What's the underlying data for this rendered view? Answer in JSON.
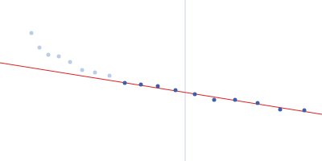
{
  "chart_data": {
    "type": "scatter",
    "xlim": [
      0,
      400
    ],
    "ylim": [
      0,
      200
    ],
    "tick_labels": false,
    "grid": false,
    "series": [
      {
        "type": "scatter",
        "color": "#b9cde8",
        "marker": "circle",
        "x": [
          39,
          49,
          60,
          73,
          87,
          102,
          118,
          136
        ],
        "values": [
          159,
          141,
          132,
          130,
          123,
          113,
          110,
          106
        ]
      },
      {
        "type": "scatter",
        "color": "#3d5ea8",
        "marker": "circle",
        "x": [
          155,
          175,
          196,
          218,
          242,
          266,
          292,
          320,
          348,
          378
        ],
        "values": [
          97,
          95,
          93,
          88,
          83,
          76,
          76,
          72,
          64,
          63
        ]
      },
      {
        "type": "line",
        "color": "#e02020",
        "x": [
          0,
          400
        ],
        "values": [
          122,
          58
        ]
      }
    ],
    "vline": {
      "x": 230,
      "color": "#c8d4e8"
    }
  }
}
